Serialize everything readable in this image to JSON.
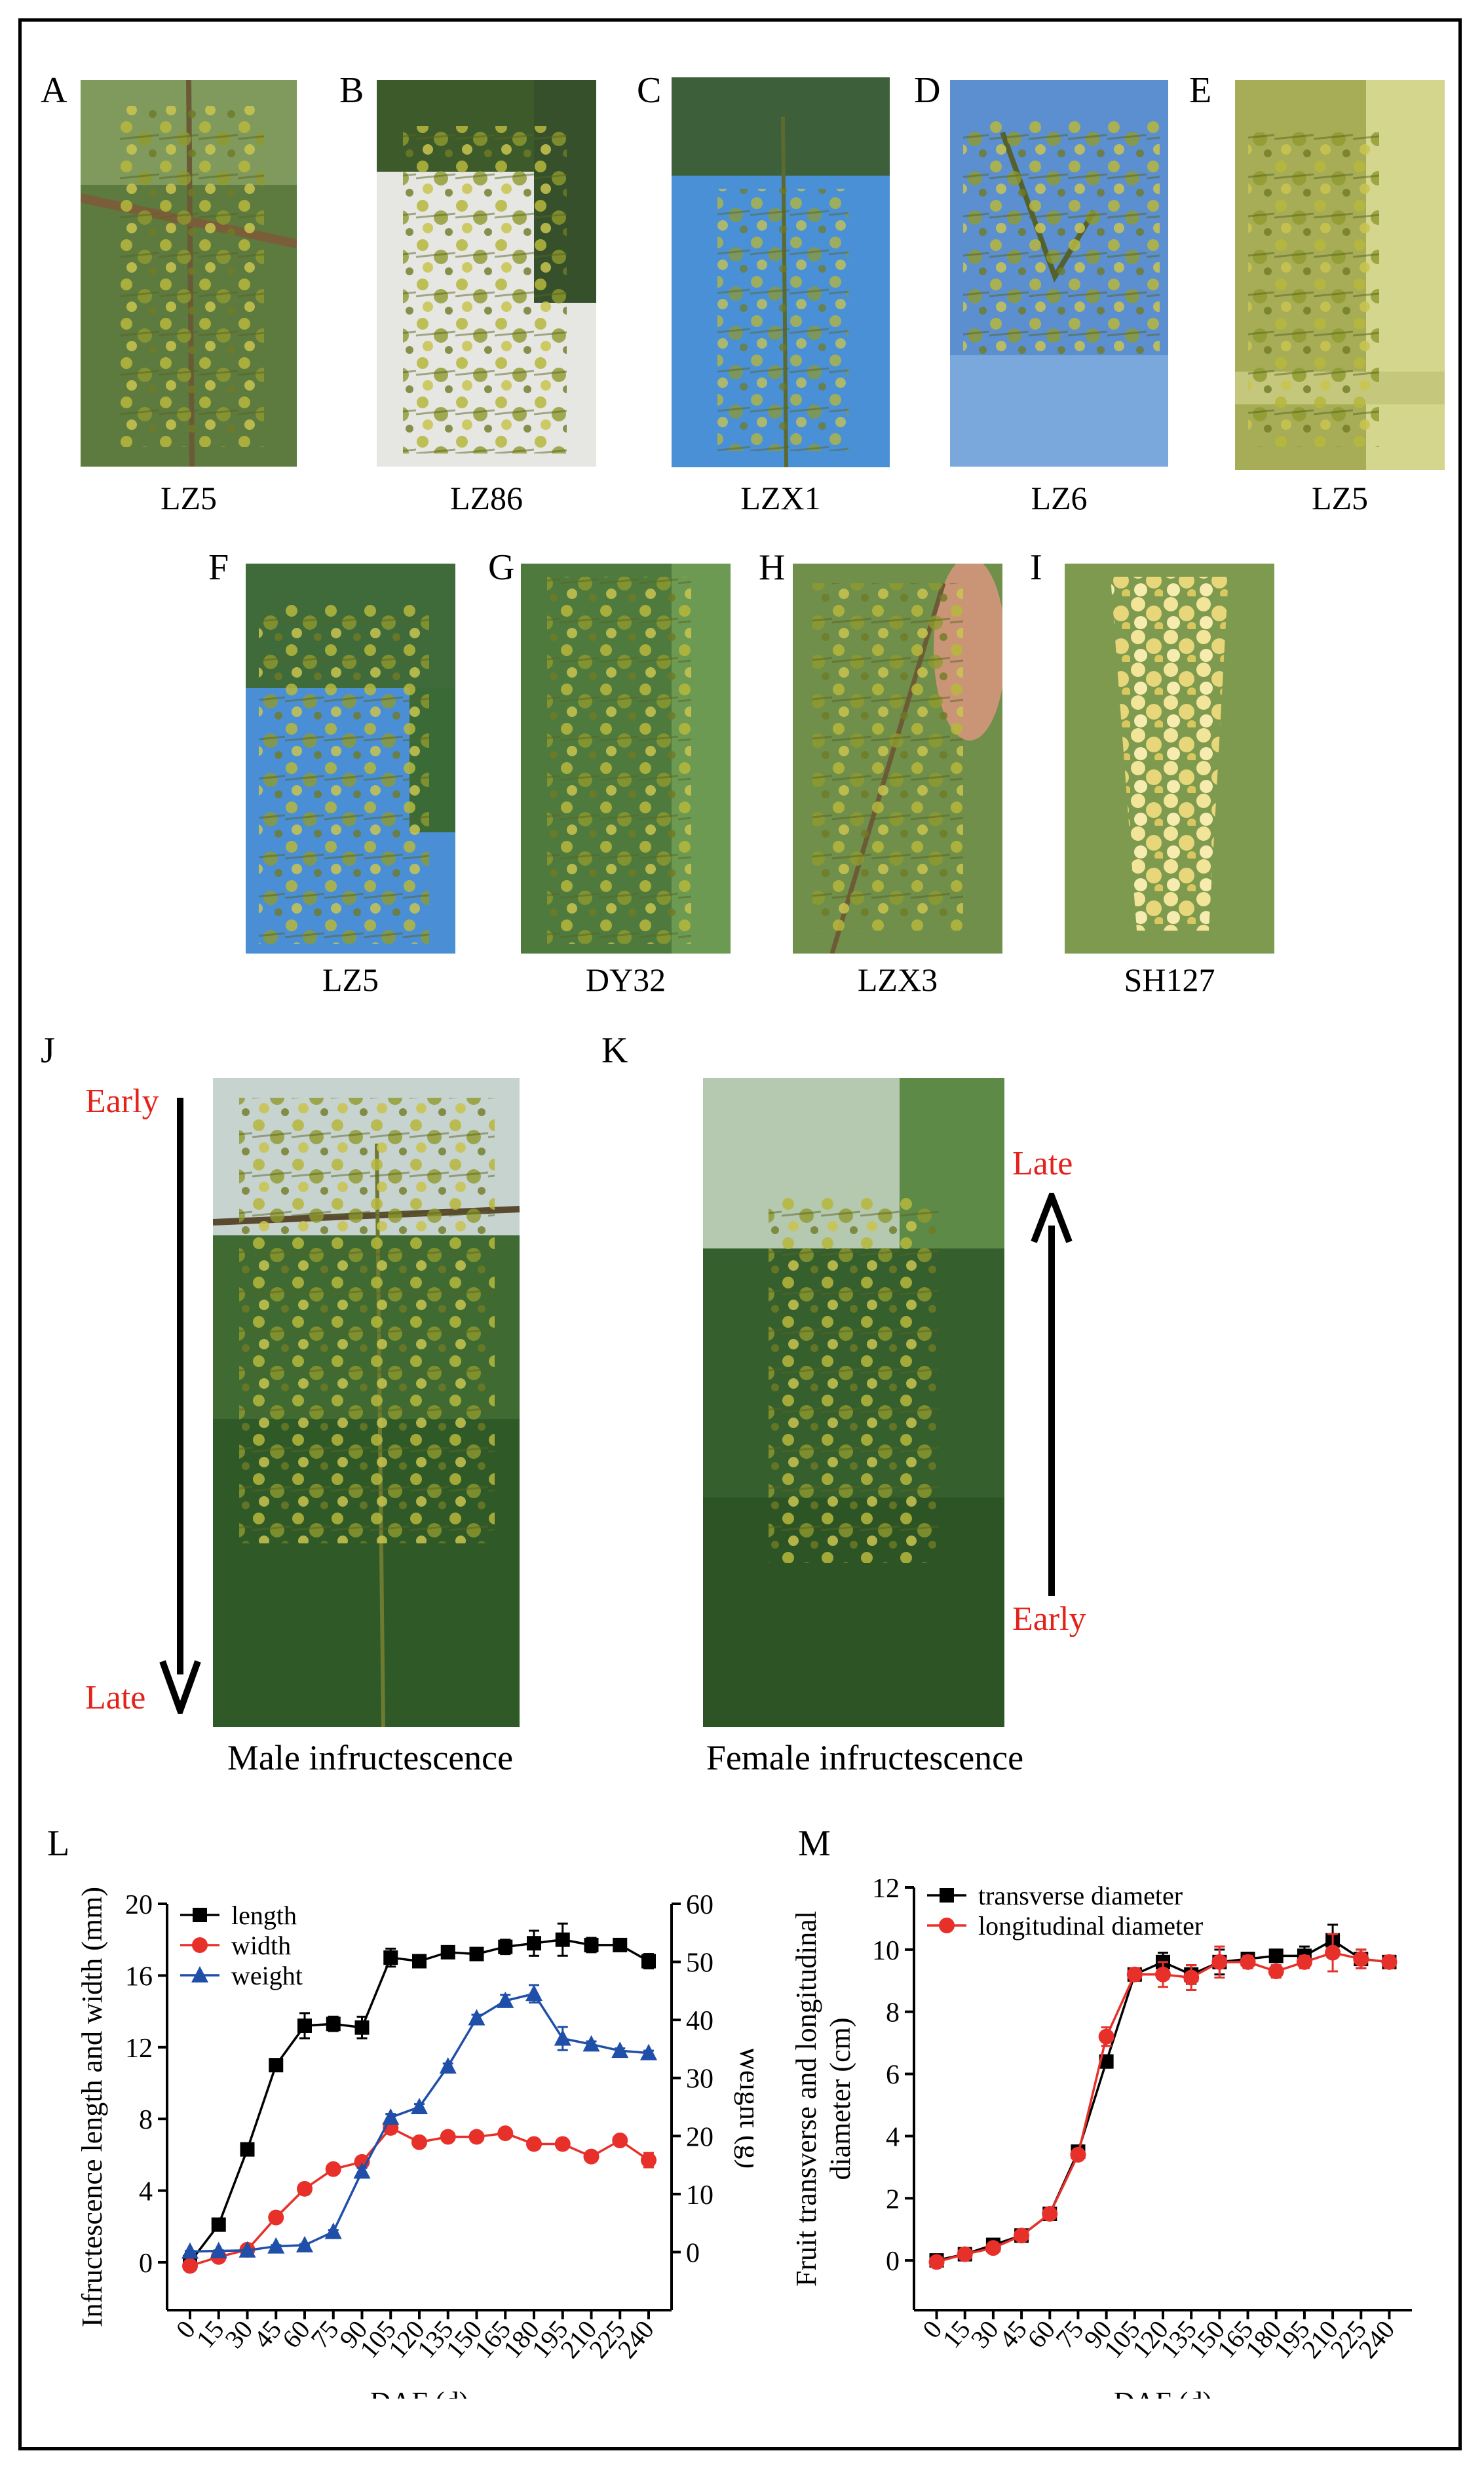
{
  "panels": {
    "A": {
      "letter": "A",
      "caption": "LZ5"
    },
    "B": {
      "letter": "B",
      "caption": "LZ86"
    },
    "C": {
      "letter": "C",
      "caption": "LZX1"
    },
    "D": {
      "letter": "D",
      "caption": "LZ6"
    },
    "E": {
      "letter": "E",
      "caption": "LZ5"
    },
    "F": {
      "letter": "F",
      "caption": "LZ5"
    },
    "G": {
      "letter": "G",
      "caption": "DY32"
    },
    "H": {
      "letter": "H",
      "caption": "LZX3"
    },
    "I": {
      "letter": "I",
      "caption": "SH127"
    },
    "J": {
      "letter": "J",
      "caption": "Male infructescence",
      "top_label": "Early",
      "bottom_label": "Late"
    },
    "K": {
      "letter": "K",
      "caption": "Female infructescence",
      "top_label": "Late",
      "bottom_label": "Early"
    },
    "L": {
      "letter": "L"
    },
    "M": {
      "letter": "M"
    }
  },
  "colors": {
    "accent_red": "#e3231b",
    "series_black": "#000000",
    "series_red": "#e8302a",
    "series_blue": "#1f4fa8"
  },
  "chart_data": [
    {
      "type": "line",
      "panel": "L",
      "xlabel": "DAF (d)",
      "ylabel": "Infructescence length and width (mm)",
      "y2label": "Weight (g)",
      "x": [
        0,
        15,
        30,
        45,
        60,
        75,
        90,
        105,
        120,
        135,
        150,
        165,
        180,
        195,
        210,
        225,
        240
      ],
      "x_ticks": [
        "0",
        "15",
        "30",
        "45",
        "60",
        "75",
        "90",
        "105",
        "120",
        "135",
        "150",
        "165",
        "180",
        "195",
        "210",
        "225",
        "240"
      ],
      "ylim": [
        -2.67,
        20
      ],
      "yticks": [
        "0",
        "4",
        "8",
        "12",
        "16",
        "20"
      ],
      "y2lim": [
        -10,
        60
      ],
      "y2ticks": [
        "0",
        "10",
        "20",
        "30",
        "40",
        "50",
        "60"
      ],
      "legend_position": "top-left",
      "series": [
        {
          "name": "length",
          "axis": "left",
          "marker": "square",
          "color": "#000000",
          "values": [
            0,
            2.1,
            6.3,
            11.0,
            13.2,
            13.3,
            13.1,
            17.0,
            16.8,
            17.3,
            17.2,
            17.6,
            17.8,
            18.0,
            17.7,
            17.7,
            16.8
          ],
          "errors": [
            0.1,
            0.1,
            0.2,
            0.2,
            0.7,
            0.4,
            0.6,
            0.5,
            0.2,
            0.2,
            0.3,
            0.4,
            0.7,
            0.9,
            0.4,
            0.3,
            0.4
          ]
        },
        {
          "name": "width",
          "axis": "left",
          "marker": "circle",
          "color": "#e8302a",
          "values": [
            -0.2,
            0.3,
            0.7,
            2.5,
            4.1,
            5.2,
            5.6,
            7.5,
            6.7,
            7.0,
            7.0,
            7.2,
            6.6,
            6.6,
            5.9,
            6.8,
            5.7
          ],
          "errors": [
            0.1,
            0.1,
            0.1,
            0.2,
            0.2,
            0.2,
            0.3,
            0.3,
            0.2,
            0.2,
            0.2,
            0.2,
            0.2,
            0.2,
            0.2,
            0.2,
            0.4
          ]
        },
        {
          "name": "weight",
          "axis": "right",
          "marker": "triangle",
          "color": "#1f4fa8",
          "values": [
            0.1,
            0.2,
            0.3,
            1.0,
            1.2,
            3.5,
            13.9,
            23.2,
            25.0,
            32.0,
            40.3,
            43.3,
            44.5,
            36.8,
            35.8,
            34.7,
            34.3
          ],
          "errors": [
            0.1,
            0.1,
            0.1,
            0.2,
            0.2,
            0.3,
            0.6,
            0.6,
            0.5,
            0.5,
            0.6,
            1.0,
            1.5,
            2.0,
            0.5,
            0.4,
            0.4
          ]
        }
      ]
    },
    {
      "type": "line",
      "panel": "M",
      "xlabel": "DAF (d)",
      "ylabel_line1": "Fruit transverse and longitudinal",
      "ylabel_line2": "diameter (cm)",
      "x": [
        0,
        15,
        30,
        45,
        60,
        75,
        90,
        105,
        120,
        135,
        150,
        165,
        180,
        195,
        210,
        225,
        240
      ],
      "x_ticks": [
        "0",
        "15",
        "30",
        "45",
        "60",
        "75",
        "90",
        "105",
        "120",
        "135",
        "150",
        "165",
        "180",
        "195",
        "210",
        "225",
        "240"
      ],
      "ylim": [
        -1.6,
        12
      ],
      "yticks": [
        "0",
        "2",
        "4",
        "6",
        "8",
        "10",
        "12"
      ],
      "legend_position": "top-left",
      "series": [
        {
          "name": "transverse diameter",
          "marker": "square",
          "color": "#000000",
          "values": [
            0.0,
            0.2,
            0.5,
            0.8,
            1.5,
            3.5,
            6.4,
            9.2,
            9.6,
            9.2,
            9.6,
            9.7,
            9.8,
            9.8,
            10.3,
            9.7,
            9.6
          ],
          "errors": [
            0.05,
            0.05,
            0.1,
            0.1,
            0.1,
            0.1,
            0.2,
            0.2,
            0.3,
            0.3,
            0.4,
            0.2,
            0.2,
            0.3,
            0.5,
            0.3,
            0.2
          ]
        },
        {
          "name": "longitudinal diameter",
          "marker": "circle",
          "color": "#e8302a",
          "values": [
            -0.05,
            0.2,
            0.4,
            0.8,
            1.5,
            3.4,
            7.2,
            9.2,
            9.2,
            9.1,
            9.6,
            9.6,
            9.3,
            9.6,
            9.9,
            9.7,
            9.6
          ],
          "errors": [
            0.05,
            0.05,
            0.1,
            0.1,
            0.1,
            0.1,
            0.3,
            0.2,
            0.4,
            0.4,
            0.5,
            0.2,
            0.2,
            0.2,
            0.6,
            0.3,
            0.2
          ]
        }
      ]
    }
  ]
}
